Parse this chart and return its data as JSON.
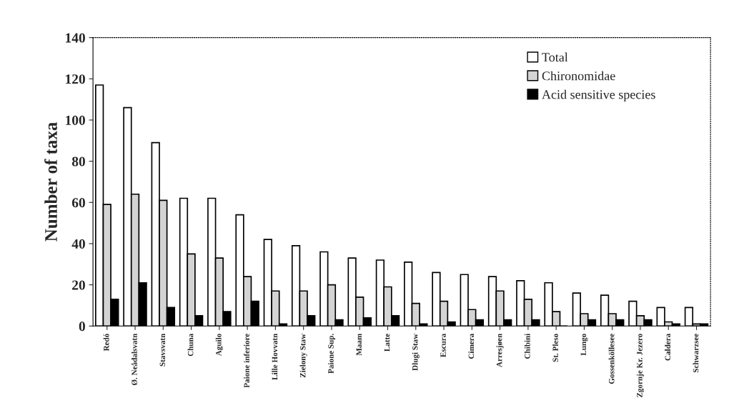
{
  "chart_data": {
    "type": "bar",
    "ylabel": "Number of taxa",
    "categories": [
      "Redó",
      "Ø. Neådalsvatn",
      "Stavsvatn",
      "Chuna",
      "Aguilo",
      "Paione inferiore",
      "Lille Hovvatn",
      "Zielony Staw",
      "Paione Sup.",
      "Maam",
      "Latte",
      "Dlugi Staw",
      "Escura",
      "Cimera",
      "Arresjøen",
      "Chibini",
      "St. Pleso",
      "Lungo",
      "Gossenköllesee",
      "Zgornje Kr. Jezero",
      "Caldera",
      "Schwarzsee"
    ],
    "series": [
      {
        "name": "Total",
        "color": "#ffffff",
        "values": [
          117,
          106,
          89,
          62,
          62,
          54,
          42,
          39,
          36,
          33,
          32,
          31,
          26,
          25,
          24,
          22,
          21,
          16,
          15,
          12,
          9,
          9
        ]
      },
      {
        "name": "Chironomidae",
        "color": "#d4d4d4",
        "values": [
          59,
          64,
          61,
          35,
          33,
          24,
          17,
          17,
          20,
          14,
          19,
          11,
          12,
          8,
          17,
          13,
          7,
          6,
          6,
          5,
          2,
          1
        ]
      },
      {
        "name": "Acid sensitive species",
        "color": "#000000",
        "values": [
          13,
          21,
          9,
          5,
          7,
          12,
          1,
          5,
          3,
          4,
          5,
          1,
          2,
          3,
          3,
          3,
          0,
          3,
          3,
          3,
          1,
          1
        ]
      }
    ],
    "ylim": [
      0,
      140
    ],
    "yticks": [
      0,
      20,
      40,
      60,
      80,
      100,
      120,
      140
    ],
    "grid": false,
    "legend": "top right"
  }
}
